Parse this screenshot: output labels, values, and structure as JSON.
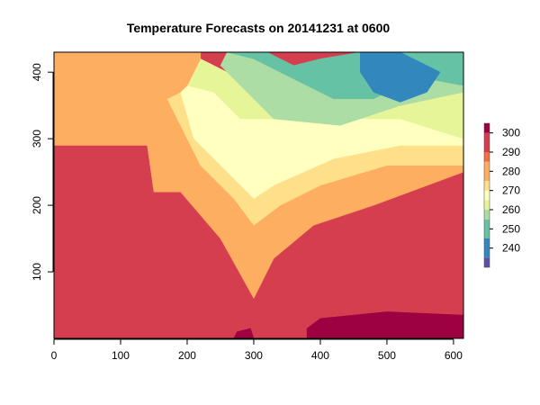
{
  "chart_data": {
    "type": "heatmap",
    "title": "Temperature Forecasts on 20141231 at 0600",
    "xlabel": "",
    "ylabel": "",
    "xlim": [
      0,
      615
    ],
    "ylim": [
      0,
      430
    ],
    "x_ticks": [
      0,
      100,
      200,
      300,
      400,
      500,
      600
    ],
    "y_ticks": [
      100,
      200,
      300,
      400
    ],
    "colorbar": {
      "position": "right",
      "range": [
        230,
        305
      ],
      "ticks": [
        240,
        250,
        260,
        270,
        280,
        290,
        300
      ],
      "levels": [
        {
          "from": 230,
          "to": 235,
          "color": "#5E4FA2"
        },
        {
          "from": 235,
          "to": 245,
          "color": "#3288BD"
        },
        {
          "from": 245,
          "to": 255,
          "color": "#66C2A5"
        },
        {
          "from": 255,
          "to": 260,
          "color": "#ABDDA4"
        },
        {
          "from": 260,
          "to": 265,
          "color": "#E6F598"
        },
        {
          "from": 265,
          "to": 270,
          "color": "#FFFFBF"
        },
        {
          "from": 270,
          "to": 275,
          "color": "#FEE08B"
        },
        {
          "from": 275,
          "to": 285,
          "color": "#FDAE61"
        },
        {
          "from": 285,
          "to": 290,
          "color": "#F46D43"
        },
        {
          "from": 290,
          "to": 300,
          "color": "#D53E4F"
        },
        {
          "from": 300,
          "to": 305,
          "color": "#9E0142"
        }
      ]
    },
    "field": {
      "regions": [
        {
          "level": 290,
          "polygon": [
            [
              0,
              0
            ],
            [
              615,
              0
            ],
            [
              615,
              250
            ],
            [
              480,
              200
            ],
            [
              390,
              170
            ],
            [
              330,
              120
            ],
            [
              300,
              60
            ],
            [
              250,
              150
            ],
            [
              190,
              220
            ],
            [
              140,
              290
            ],
            [
              0,
              290
            ]
          ]
        },
        {
          "level": 300,
          "polygon": [
            [
              380,
              0
            ],
            [
              615,
              0
            ],
            [
              615,
              35
            ],
            [
              500,
              40
            ],
            [
              400,
              30
            ],
            [
              380,
              15
            ]
          ]
        },
        {
          "level": 300,
          "polygon": [
            [
              270,
              0
            ],
            [
              300,
              0
            ],
            [
              295,
              15
            ],
            [
              275,
              10
            ]
          ]
        },
        {
          "level": 275,
          "polygon": [
            [
              0,
              290
            ],
            [
              140,
              290
            ],
            [
              150,
              220
            ],
            [
              190,
              220
            ],
            [
              250,
              150
            ],
            [
              300,
              60
            ],
            [
              330,
              120
            ],
            [
              390,
              170
            ],
            [
              480,
              200
            ],
            [
              615,
              250
            ],
            [
              615,
              260
            ],
            [
              500,
              260
            ],
            [
              400,
              230
            ],
            [
              340,
              200
            ],
            [
              300,
              170
            ],
            [
              270,
              210
            ],
            [
              220,
              260
            ],
            [
              170,
              360
            ],
            [
              150,
              380
            ],
            [
              30,
              390
            ],
            [
              0,
              380
            ]
          ]
        },
        {
          "level": 270,
          "polygon": [
            [
              170,
              360
            ],
            [
              220,
              260
            ],
            [
              270,
              210
            ],
            [
              300,
              170
            ],
            [
              340,
              200
            ],
            [
              400,
              230
            ],
            [
              500,
              260
            ],
            [
              615,
              260
            ],
            [
              615,
              290
            ],
            [
              520,
              290
            ],
            [
              420,
              270
            ],
            [
              330,
              230
            ],
            [
              300,
              210
            ],
            [
              250,
              260
            ],
            [
              210,
              300
            ],
            [
              190,
              370
            ]
          ]
        },
        {
          "level": 265,
          "polygon": [
            [
              190,
              370
            ],
            [
              210,
              300
            ],
            [
              250,
              260
            ],
            [
              300,
              210
            ],
            [
              330,
              230
            ],
            [
              420,
              270
            ],
            [
              520,
              290
            ],
            [
              615,
              290
            ],
            [
              615,
              300
            ],
            [
              520,
              330
            ],
            [
              420,
              330
            ],
            [
              320,
              330
            ],
            [
              280,
              330
            ],
            [
              240,
              370
            ],
            [
              200,
              380
            ]
          ]
        },
        {
          "level": 260,
          "polygon": [
            [
              200,
              380
            ],
            [
              240,
              370
            ],
            [
              280,
              330
            ],
            [
              320,
              330
            ],
            [
              420,
              330
            ],
            [
              520,
              330
            ],
            [
              615,
              300
            ],
            [
              615,
              370
            ],
            [
              520,
              350
            ],
            [
              430,
              320
            ],
            [
              330,
              330
            ],
            [
              290,
              370
            ],
            [
              260,
              400
            ],
            [
              220,
              420
            ],
            [
              210,
              400
            ]
          ]
        },
        {
          "level": 255,
          "polygon": [
            [
              290,
              370
            ],
            [
              330,
              330
            ],
            [
              430,
              320
            ],
            [
              520,
              350
            ],
            [
              615,
              370
            ],
            [
              615,
              380
            ],
            [
              560,
              390
            ],
            [
              520,
              380
            ],
            [
              480,
              360
            ],
            [
              420,
              360
            ],
            [
              380,
              380
            ],
            [
              340,
              400
            ],
            [
              300,
              420
            ],
            [
              260,
              430
            ],
            [
              250,
              410
            ]
          ]
        },
        {
          "level": 250,
          "polygon": [
            [
              260,
              430
            ],
            [
              300,
              420
            ],
            [
              340,
              400
            ],
            [
              380,
              380
            ],
            [
              420,
              360
            ],
            [
              480,
              360
            ],
            [
              520,
              380
            ],
            [
              560,
              390
            ],
            [
              615,
              380
            ],
            [
              615,
              430
            ],
            [
              520,
              430
            ],
            [
              460,
              430
            ],
            [
              400,
              420
            ],
            [
              360,
              410
            ],
            [
              320,
              430
            ]
          ]
        },
        {
          "level": 240,
          "polygon": [
            [
              460,
              430
            ],
            [
              520,
              430
            ],
            [
              580,
              400
            ],
            [
              560,
              370
            ],
            [
              520,
              355
            ],
            [
              480,
              370
            ],
            [
              460,
              400
            ]
          ]
        },
        {
          "level": 235,
          "polygon": [
            [
              510,
              425
            ],
            [
              540,
              410
            ],
            [
              545,
              390
            ],
            [
              525,
              378
            ],
            [
              505,
              395
            ]
          ]
        },
        {
          "level": 275,
          "polygon": [
            [
              0,
              380
            ],
            [
              30,
              390
            ],
            [
              150,
              380
            ],
            [
              170,
              360
            ],
            [
              190,
              370
            ],
            [
              200,
              380
            ],
            [
              210,
              400
            ],
            [
              220,
              420
            ],
            [
              220,
              430
            ],
            [
              0,
              430
            ]
          ]
        }
      ]
    }
  }
}
